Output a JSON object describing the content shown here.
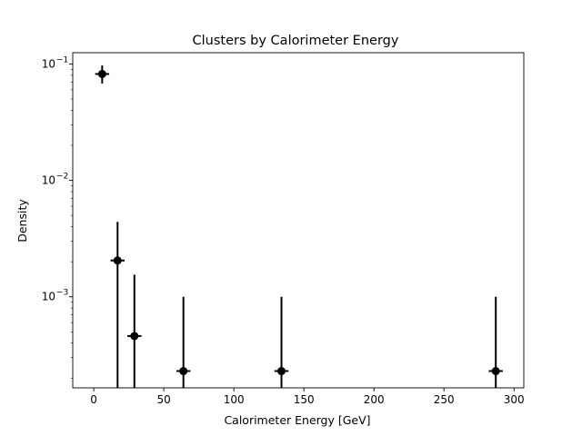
{
  "chart_data": {
    "type": "scatter",
    "title": "Clusters by Calorimeter Energy",
    "xlabel": "Calorimeter Energy [GeV]",
    "ylabel": "Density",
    "xlim": [
      -15,
      307
    ],
    "ylim": [
      0.000165,
      0.125
    ],
    "yscale": "log",
    "grid": false,
    "x_ticks": [
      0,
      50,
      100,
      150,
      200,
      250,
      300
    ],
    "y_ticks": [
      {
        "base": "10",
        "exp": "−3",
        "value": 0.001
      },
      {
        "base": "10",
        "exp": "−2",
        "value": 0.01
      },
      {
        "base": "10",
        "exp": "−1",
        "value": 0.1
      }
    ],
    "marker_color": "#000000",
    "points": [
      {
        "x": 6,
        "y": 0.082,
        "x_err": [
          5,
          5
        ],
        "y_low": 0.068,
        "y_high": 0.097
      },
      {
        "x": 17,
        "y": 0.00205,
        "x_err": [
          5,
          5
        ],
        "y_low": 1e-06,
        "y_high": 0.0044
      },
      {
        "x": 29,
        "y": 0.00046,
        "x_err": [
          5,
          5
        ],
        "y_low": 1e-06,
        "y_high": 0.00155
      },
      {
        "x": 64,
        "y": 0.00023,
        "x_err": [
          5,
          5
        ],
        "y_low": 1e-06,
        "y_high": 0.001
      },
      {
        "x": 134,
        "y": 0.00023,
        "x_err": [
          5,
          5
        ],
        "y_low": 1e-06,
        "y_high": 0.001
      },
      {
        "x": 287,
        "y": 0.00023,
        "x_err": [
          5,
          5
        ],
        "y_low": 1e-06,
        "y_high": 0.001
      }
    ]
  }
}
